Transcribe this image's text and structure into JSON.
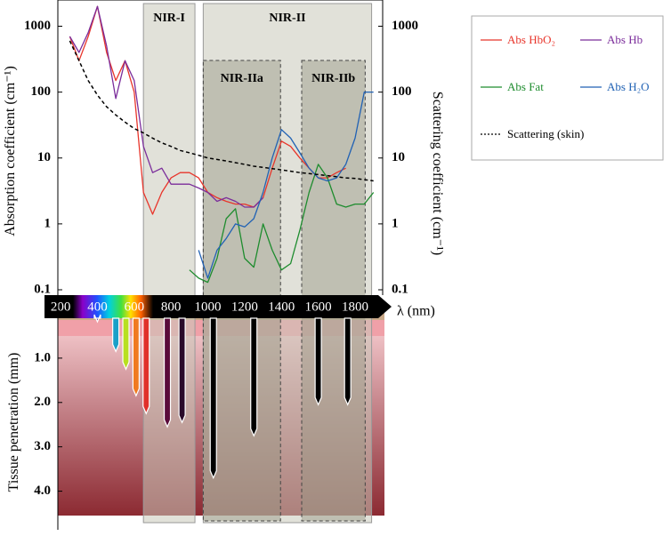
{
  "chart_data": [
    {
      "type": "line",
      "log_scale": true,
      "xlabel": "λ (nm)",
      "ylabel": "Absorption coefficient (cm⁻¹)",
      "y2label": "Scattering coefficient (cm⁻¹)",
      "xlim": [
        185,
        1950
      ],
      "xticks": [
        200,
        400,
        600,
        800,
        1000,
        1200,
        1400,
        1600,
        1800
      ],
      "ylim": [
        0.1,
        2500
      ],
      "yticks": [
        0.1,
        1,
        10,
        100,
        1000
      ],
      "y2lim": [
        0.1,
        2500
      ],
      "y2ticks": [
        0.1,
        1,
        10,
        100,
        1000
      ],
      "bands": [
        {
          "label": "NIR-I",
          "range": [
            650,
            930
          ]
        },
        {
          "label": "NIR-II",
          "range": [
            975,
            1890
          ]
        },
        {
          "label": "NIR-IIa",
          "range": [
            975,
            1395
          ]
        },
        {
          "label": "NIR-IIb",
          "range": [
            1510,
            1855
          ]
        }
      ],
      "x": [
        250,
        300,
        350,
        400,
        450,
        500,
        550,
        600,
        650,
        700,
        750,
        800,
        850,
        900,
        950,
        1000,
        1050,
        1100,
        1150,
        1200,
        1250,
        1300,
        1350,
        1400,
        1450,
        1500,
        1550,
        1600,
        1650,
        1700,
        1750,
        1800,
        1850,
        1900
      ],
      "series": [
        {
          "name": "Abs HbO₂",
          "color": "#e8352b",
          "values": [
            700,
            300,
            700,
            2000,
            400,
            150,
            300,
            100,
            3,
            1.4,
            3,
            5,
            6,
            6,
            5,
            3,
            2.5,
            2.2,
            2,
            2,
            1.8,
            2.5,
            7,
            18,
            15,
            10,
            7,
            5,
            5,
            6,
            7,
            null,
            null,
            null
          ]
        },
        {
          "name": "Abs Hb",
          "color": "#7b2d9b",
          "values": [
            700,
            400,
            800,
            2000,
            500,
            80,
            300,
            150,
            15,
            6,
            7,
            4,
            4,
            4,
            3.5,
            3,
            2.2,
            2.5,
            2.2,
            1.8,
            1.8,
            2.5,
            null,
            null,
            null,
            null,
            null,
            null,
            null,
            null,
            null,
            null,
            null,
            null
          ]
        },
        {
          "name": "Abs Fat",
          "color": "#1e8c2e",
          "values": [
            null,
            null,
            null,
            null,
            null,
            null,
            null,
            null,
            null,
            null,
            null,
            null,
            null,
            0.2,
            0.15,
            0.13,
            0.3,
            1.2,
            1.7,
            0.3,
            0.22,
            1,
            0.4,
            0.2,
            0.25,
            0.8,
            3,
            8,
            5,
            2,
            1.8,
            2,
            2,
            3
          ]
        },
        {
          "name": "Abs H₂O",
          "color": "#2162b4",
          "values": [
            null,
            null,
            null,
            null,
            null,
            null,
            null,
            null,
            null,
            null,
            null,
            null,
            null,
            null,
            0.4,
            0.15,
            0.4,
            0.6,
            1,
            0.9,
            1.2,
            3,
            10,
            27,
            20,
            12,
            7,
            5,
            4.5,
            5,
            8,
            20,
            100,
            100
          ]
        },
        {
          "name": "Scattering (skin)",
          "color": "#000000",
          "dash": true,
          "axis": "y2",
          "values": [
            600,
            300,
            150,
            90,
            60,
            45,
            35,
            28,
            24,
            20,
            17,
            15,
            13,
            12,
            11,
            10,
            9.5,
            9,
            8.5,
            8,
            7.5,
            7.2,
            6.9,
            6.6,
            6.3,
            6,
            5.8,
            5.6,
            5.4,
            5.2,
            5,
            4.9,
            4.7,
            4.5
          ]
        }
      ]
    },
    {
      "type": "arrow",
      "ylabel": "Tissue penetration (mm)",
      "xlim": [
        185,
        1950
      ],
      "ylim": [
        0,
        4.55
      ],
      "yticks": [
        {
          "value": 1,
          "label": "1.0"
        },
        {
          "value": 2,
          "label": "2.0"
        },
        {
          "value": 3,
          "label": "3.0"
        },
        {
          "value": 4,
          "label": "4.0"
        }
      ],
      "x": [
        400,
        500,
        555,
        610,
        665,
        780,
        860,
        1030,
        1250,
        1600,
        1760
      ],
      "values": [
        0.18,
        0.85,
        1.25,
        1.85,
        2.25,
        2.55,
        2.45,
        3.7,
        2.75,
        2.05,
        2.05
      ],
      "colors": [
        "#5a2ca0",
        "#1aa0c8",
        "#b8e020",
        "#f07a20",
        "#e0302a",
        "#5a0a3a",
        "#2a0a2a",
        "#000000",
        "#000000",
        "#000000",
        "#000000"
      ]
    }
  ]
}
